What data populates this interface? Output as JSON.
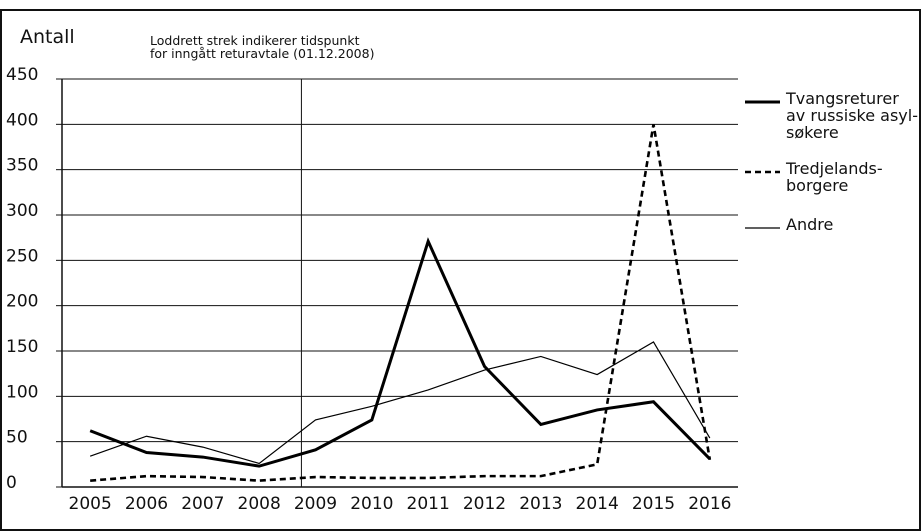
{
  "chart_data": {
    "type": "line",
    "y_label": "Antall",
    "annotation": "Loddrett strek indikerer tidspunkt\nfor inngått returavtale (01.12.2008)",
    "reference_line_x": 2008.75,
    "x": [
      2005,
      2006,
      2007,
      2008,
      2009,
      2010,
      2011,
      2012,
      2013,
      2014,
      2015,
      2016
    ],
    "xlim": [
      2004.5,
      2016.5
    ],
    "xticks": [
      2005,
      2006,
      2007,
      2008,
      2009,
      2010,
      2011,
      2012,
      2013,
      2014,
      2015,
      2016
    ],
    "ylim": [
      0,
      450
    ],
    "yticks": [
      0,
      50,
      100,
      150,
      200,
      250,
      300,
      350,
      400,
      450
    ],
    "grid": true,
    "series": [
      {
        "name": "Tvangsreturer\nav russiske asyl-\nsøkere",
        "color": "#000000",
        "style": "thick",
        "values": [
          62,
          38,
          33,
          23,
          41,
          74,
          271,
          133,
          69,
          85,
          94,
          31
        ]
      },
      {
        "name": "Tredjelands-\nborgere",
        "color": "#000000",
        "style": "dashed",
        "values": [
          7,
          12,
          11,
          7,
          11,
          10,
          10,
          12,
          12,
          25,
          400,
          30
        ]
      },
      {
        "name": "Andre",
        "color": "#000000",
        "style": "thin",
        "values": [
          34,
          56,
          44,
          26,
          74,
          89,
          107,
          129,
          144,
          124,
          160,
          54
        ]
      }
    ]
  }
}
